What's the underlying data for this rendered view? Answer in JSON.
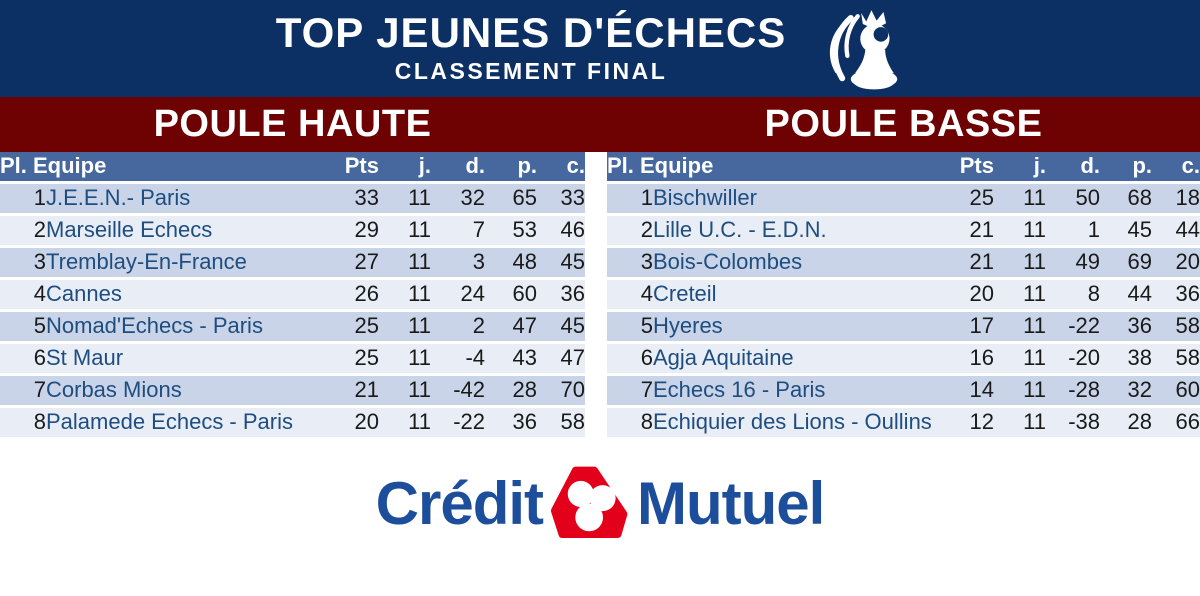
{
  "header": {
    "title": "TOP JEUNES D'ÉCHECS",
    "subtitle": "CLASSEMENT FINAL",
    "logo_icon": "ffe-rooster-pawn"
  },
  "poules": [
    {
      "title": "POULE HAUTE",
      "header": {
        "place_equipe": "Pl. Equipe",
        "cols": [
          "Pts",
          "j.",
          "d.",
          "p.",
          "c."
        ]
      },
      "rows": [
        [
          "1",
          "J.E.E.N.- Paris",
          "33",
          "11",
          "32",
          "65",
          "33"
        ],
        [
          "2",
          "Marseille Echecs",
          "29",
          "11",
          "7",
          "53",
          "46"
        ],
        [
          "3",
          "Tremblay-En-France",
          "27",
          "11",
          "3",
          "48",
          "45"
        ],
        [
          "4",
          "Cannes",
          "26",
          "11",
          "24",
          "60",
          "36"
        ],
        [
          "5",
          "Nomad'Echecs - Paris",
          "25",
          "11",
          "2",
          "47",
          "45"
        ],
        [
          "6",
          "St Maur",
          "25",
          "11",
          "-4",
          "43",
          "47"
        ],
        [
          "7",
          "Corbas Mions",
          "21",
          "11",
          "-42",
          "28",
          "70"
        ],
        [
          "8",
          "Palamede Echecs - Paris",
          "20",
          "11",
          "-22",
          "36",
          "58"
        ]
      ]
    },
    {
      "title": "POULE BASSE",
      "header": {
        "place_equipe": "Pl. Equipe",
        "cols": [
          "Pts",
          "j.",
          "d.",
          "p.",
          "c."
        ]
      },
      "rows": [
        [
          "1",
          "Bischwiller",
          "25",
          "11",
          "50",
          "68",
          "18"
        ],
        [
          "2",
          "Lille U.C. - E.D.N.",
          "21",
          "11",
          "1",
          "45",
          "44"
        ],
        [
          "3",
          "Bois-Colombes",
          "21",
          "11",
          "49",
          "69",
          "20"
        ],
        [
          "4",
          "Creteil",
          "20",
          "11",
          "8",
          "44",
          "36"
        ],
        [
          "5",
          "Hyeres",
          "17",
          "11",
          "-22",
          "36",
          "58"
        ],
        [
          "6",
          "Agja Aquitaine",
          "16",
          "11",
          "-20",
          "38",
          "58"
        ],
        [
          "7",
          "Echecs 16 - Paris",
          "14",
          "11",
          "-28",
          "32",
          "60"
        ],
        [
          "8",
          "Echiquier des Lions - Oullins",
          "12",
          "11",
          "-38",
          "28",
          "66"
        ]
      ]
    }
  ],
  "sponsor": {
    "word_left": "Crédit",
    "word_right": "Mutuel",
    "emblem_icon": "credit-mutuel-emblem"
  },
  "colors": {
    "banner_navy": "#0d3064",
    "band_maroon": "#6e0202",
    "table_header_blue": "#46689f",
    "row_light_blue": "#c9d4e8",
    "row_lighter_blue": "#e9edf6",
    "team_text_blue": "#1e4d80",
    "credit_mutuel_blue": "#1d4e9c",
    "credit_mutuel_red": "#e2001a"
  }
}
